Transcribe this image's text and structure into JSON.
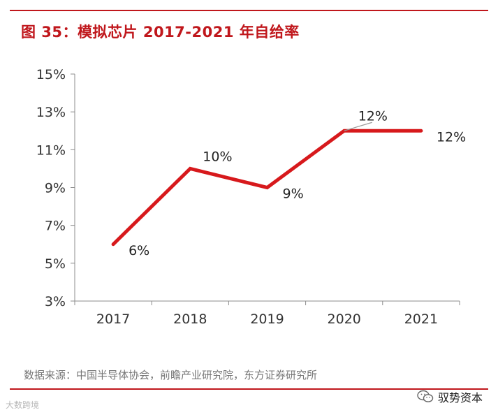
{
  "header": {
    "title": "图 35：模拟芯片 2017-2021 年自给率"
  },
  "chart_data": {
    "type": "line",
    "title": "图 35：模拟芯片 2017-2021 年自给率",
    "categories": [
      "2017",
      "2018",
      "2019",
      "2020",
      "2021"
    ],
    "series": [
      {
        "name": "模拟芯片自给率",
        "values": [
          6,
          10,
          9,
          12,
          12
        ],
        "color": "#d7191c"
      }
    ],
    "data_labels": [
      "6%",
      "10%",
      "9%",
      "12%",
      "12%"
    ],
    "yticks": [
      "3%",
      "5%",
      "7%",
      "9%",
      "11%",
      "13%",
      "15%"
    ],
    "ytick_values": [
      3,
      5,
      7,
      9,
      11,
      13,
      15
    ],
    "ylim": [
      3,
      15
    ],
    "xlabel": "",
    "ylabel": "",
    "grid": false
  },
  "footer": {
    "source": "数据来源：中国半导体协会，前瞻产业研究院，东方证券研究所",
    "watermark_left": "大数跨境",
    "watermark_right": "驭势资本"
  },
  "colors": {
    "accent": "#c0171c",
    "line": "#d7191c"
  }
}
